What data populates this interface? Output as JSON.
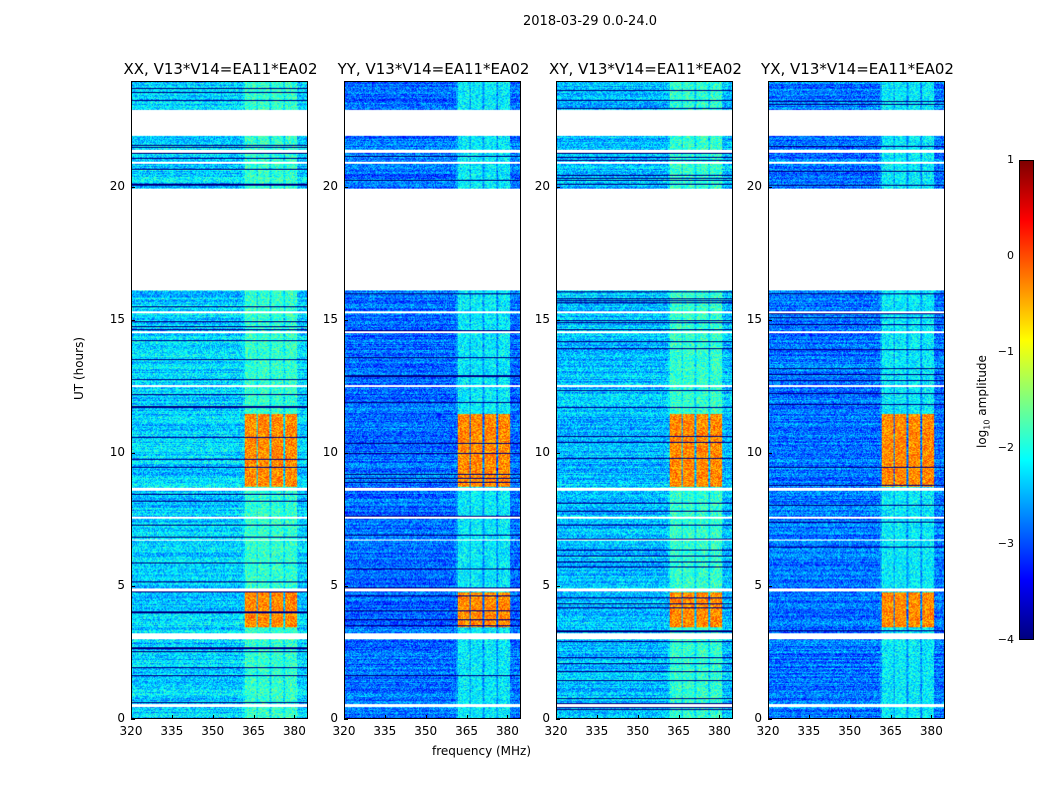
{
  "chart_data": {
    "type": "heatmap",
    "title": "2018-03-29 0.0-24.0",
    "xlabel": "frequency (MHz)",
    "ylabel": "UT (hours)",
    "xlim": [
      320,
      385
    ],
    "ylim": [
      0,
      24
    ],
    "xticks": [
      "320",
      "335",
      "350",
      "365",
      "380"
    ],
    "xtick_values": [
      320,
      335,
      350,
      365,
      380
    ],
    "yticks": [
      "0",
      "5",
      "10",
      "15",
      "20"
    ],
    "ytick_values": [
      0,
      5,
      10,
      15,
      20
    ],
    "colorbar": {
      "label": "log10 amplitude",
      "label_main": "log",
      "label_sub": "10",
      "label_tail": " amplitude",
      "range": [
        -4,
        1
      ],
      "ticks": [
        "1",
        "0",
        "−1",
        "−2",
        "−3",
        "−4"
      ],
      "tick_values": [
        1,
        0,
        -1,
        -2,
        -3,
        -4
      ],
      "colormap": "jet"
    },
    "panels": [
      {
        "title": "XX, V13*V14=EA11*EA02",
        "base_level": -2.35
      },
      {
        "title": "YY, V13*V14=EA11*EA02",
        "base_level": -2.85
      },
      {
        "title": "XY, V13*V14=EA11*EA02",
        "base_level": -2.45
      },
      {
        "title": "YX, V13*V14=EA11*EA02",
        "base_level": -2.8
      }
    ],
    "flagged_hours": [
      [
        22.0,
        22.95
      ],
      [
        16.15,
        20.0
      ],
      [
        8.6,
        8.72
      ],
      [
        7.55,
        7.62
      ],
      [
        6.7,
        6.76
      ],
      [
        4.8,
        4.9
      ],
      [
        3.0,
        3.2
      ],
      [
        0.45,
        0.55
      ],
      [
        12.5,
        12.58
      ],
      [
        14.55,
        14.6
      ],
      [
        21.35,
        21.45
      ],
      [
        20.95,
        21.0
      ],
      [
        15.3,
        15.35
      ]
    ],
    "rfi_band_mhz": [
      361,
      381
    ],
    "rfi_strong_hours": [
      [
        8.75,
        11.5
      ],
      [
        3.45,
        4.75
      ]
    ],
    "rfi_strong_level": -0.3,
    "rfi_weak_level": -1.9
  }
}
